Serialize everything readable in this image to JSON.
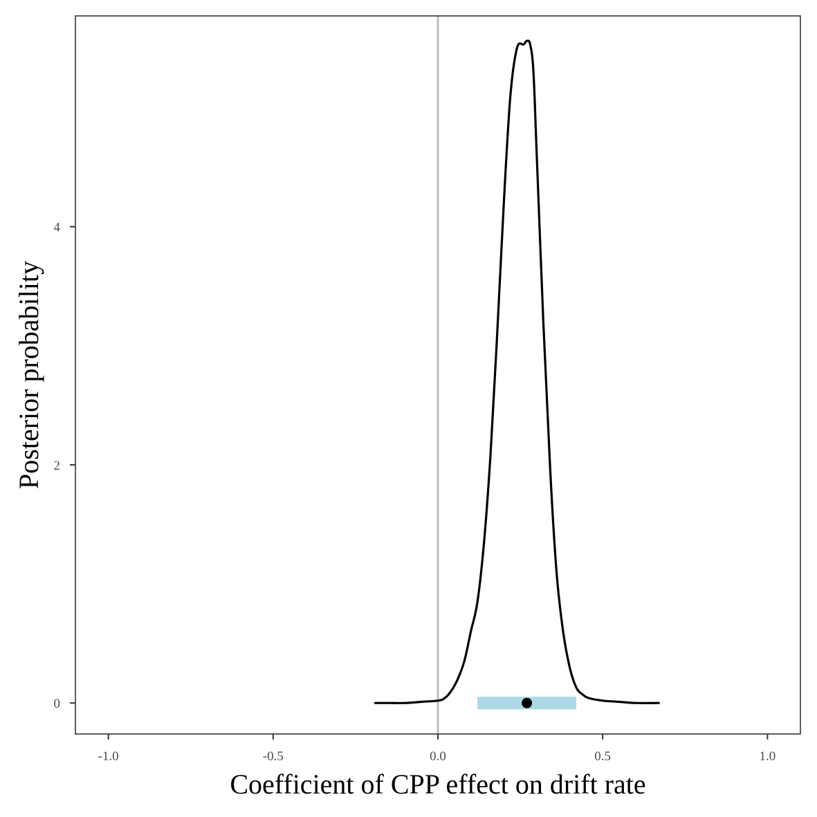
{
  "chart_data": {
    "type": "line",
    "title": "",
    "xlabel": "Coefficient of CPP effect on drift rate",
    "ylabel": "Posterior probability",
    "xlim": [
      -1.1,
      1.1
    ],
    "ylim": [
      -0.26,
      5.77
    ],
    "grid": false,
    "legend": "none",
    "x_ticks": [
      {
        "value": -1.0,
        "label": "-1.0"
      },
      {
        "value": -0.5,
        "label": "-0.5"
      },
      {
        "value": 0.0,
        "label": "0.0"
      },
      {
        "value": 0.5,
        "label": "0.5"
      },
      {
        "value": 1.0,
        "label": "1.0"
      }
    ],
    "y_ticks": [
      {
        "value": 0,
        "label": "0"
      },
      {
        "value": 2,
        "label": "2"
      },
      {
        "value": 4,
        "label": "4"
      }
    ],
    "reference_line": {
      "x": 0.0,
      "color": "#bebebe"
    },
    "density": {
      "color": "#000000",
      "x": [
        -0.19,
        -0.15,
        -0.1,
        -0.05,
        0.0,
        0.02,
        0.04,
        0.06,
        0.08,
        0.1,
        0.12,
        0.14,
        0.16,
        0.18,
        0.2,
        0.22,
        0.24,
        0.26,
        0.27,
        0.28,
        0.29,
        0.3,
        0.32,
        0.34,
        0.36,
        0.38,
        0.4,
        0.42,
        0.44,
        0.46,
        0.5,
        0.55,
        0.6,
        0.67
      ],
      "y": [
        0.0,
        0.0,
        0.0,
        0.01,
        0.02,
        0.04,
        0.1,
        0.2,
        0.35,
        0.6,
        0.85,
        1.35,
        2.1,
        3.1,
        4.2,
        5.1,
        5.5,
        5.53,
        5.56,
        5.53,
        5.3,
        4.6,
        3.2,
        2.0,
        1.1,
        0.6,
        0.3,
        0.13,
        0.07,
        0.04,
        0.02,
        0.01,
        0.0,
        0.0
      ]
    },
    "interval": {
      "lower": 0.12,
      "upper": 0.42,
      "y": 0,
      "color": "#add8e6"
    },
    "point_estimate": {
      "x": 0.27,
      "y": 0,
      "color": "#000000"
    }
  }
}
